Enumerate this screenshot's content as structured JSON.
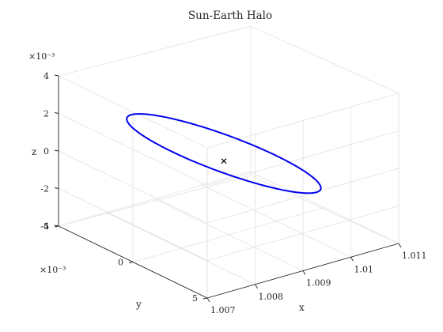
{
  "chart_data": {
    "type": "line3d",
    "title": "Sun-Earth Halo",
    "xlabel": "x",
    "ylabel": "y",
    "zlabel": "z",
    "xlim": [
      1.007,
      1.011
    ],
    "ylim": [
      -0.005,
      0.005
    ],
    "zlim": [
      -0.004,
      0.004
    ],
    "x_ticks": [
      "1.007",
      "1.008",
      "1.009",
      "1.01",
      "1.011"
    ],
    "y_ticks": [
      "-5",
      "0",
      "5"
    ],
    "z_ticks": [
      "-4",
      "-2",
      "0",
      "2",
      "4"
    ],
    "y_exponent": "×10⁻³",
    "z_exponent": "×10⁻³",
    "grid": true,
    "series": [
      {
        "type": "line",
        "color": "#0000ee",
        "x": [
          1.0088,
          1.0078,
          1.0074,
          1.0076,
          1.0081,
          1.009,
          1.0099,
          1.0106,
          1.0108,
          1.0106,
          1.0099,
          1.009,
          1.0088
        ],
        "y": [
          0.0,
          0.0015,
          0.0008,
          -0.0008,
          -0.0025,
          -0.0033,
          -0.003,
          -0.0018,
          0.0,
          0.0018,
          0.003,
          0.0033,
          0.0
        ],
        "z": [
          -0.004,
          -0.0024,
          -0.0003,
          0.0018,
          0.0032,
          0.0038,
          0.0034,
          0.0022,
          0.0002,
          -0.0018,
          -0.0032,
          -0.0038,
          -0.004
        ]
      }
    ],
    "markers": [
      {
        "symbol": "×",
        "color": "#000000",
        "x": 1.0089,
        "y": 0.0,
        "z": 0.0
      }
    ]
  }
}
